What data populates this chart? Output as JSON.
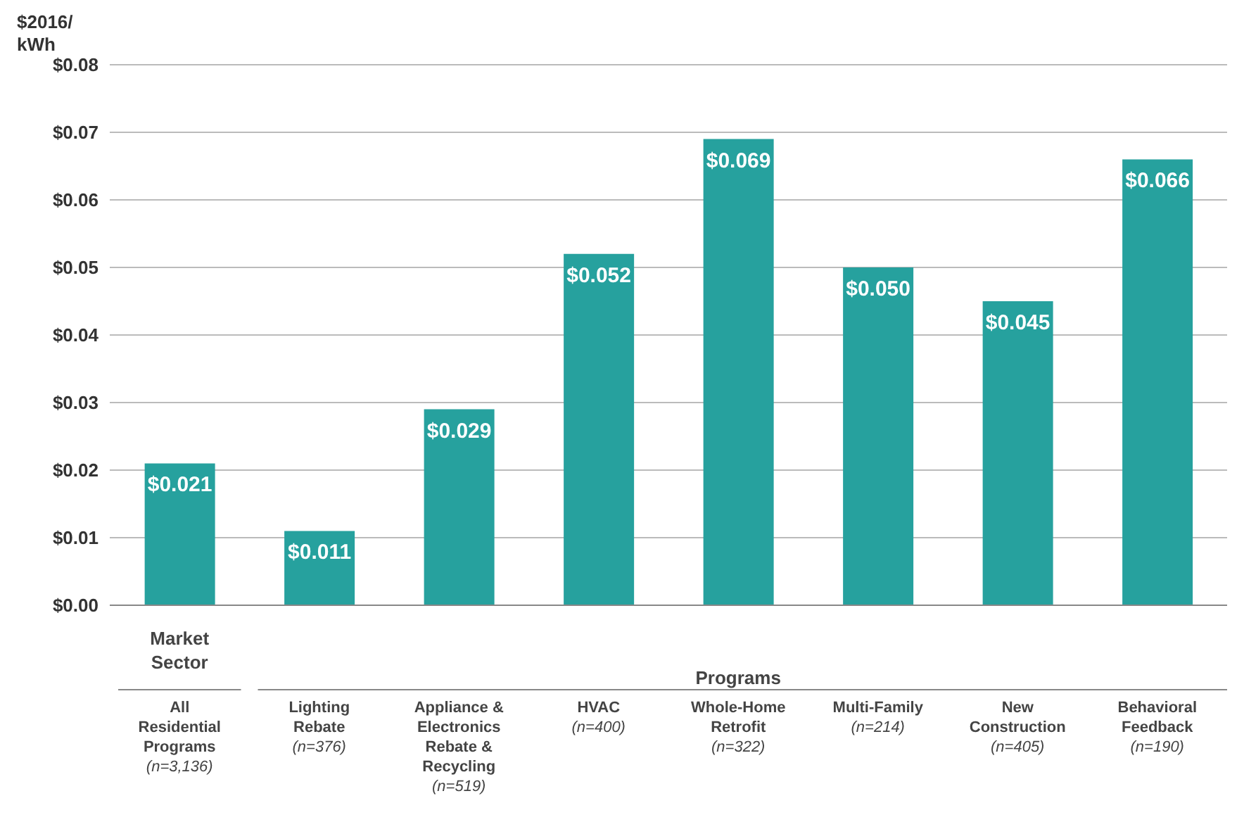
{
  "chart_data": {
    "type": "bar",
    "ylabel": "$2016/ kWh",
    "categories": [
      "All Residential Programs (n=3,136)",
      "Lighting Rebate (n=376)",
      "Appliance & Electronics Rebate & Recycling (n=519)",
      "HVAC (n=400)",
      "Whole-Home Retrofit (n=322)",
      "Multi-Family (n=214)",
      "New Construction (n=405)",
      "Behavioral Feedback (n=190)"
    ],
    "values": [
      0.021,
      0.011,
      0.029,
      0.052,
      0.069,
      0.05,
      0.045,
      0.066
    ],
    "value_labels": [
      "$0.021",
      "$0.011",
      "$0.029",
      "$0.052",
      "$0.069",
      "$0.050",
      "$0.045",
      "$0.066"
    ],
    "color": "#26a19e",
    "ylim": [
      0,
      0.08
    ],
    "yticks": [
      {
        "value": 0,
        "label": "$0.00"
      },
      {
        "value": 0.01,
        "label": "$0.01"
      },
      {
        "value": 0.02,
        "label": "$0.02"
      },
      {
        "value": 0.03,
        "label": "$0.03"
      },
      {
        "value": 0.04,
        "label": "$0.04"
      },
      {
        "value": 0.05,
        "label": "$0.05"
      },
      {
        "value": 0.06,
        "label": "$0.06"
      },
      {
        "value": 0.07,
        "label": "$0.07"
      },
      {
        "value": 0.08,
        "label": "$0.08"
      }
    ],
    "grid": "y",
    "annotations": [
      "Market Sector",
      "Programs"
    ]
  }
}
